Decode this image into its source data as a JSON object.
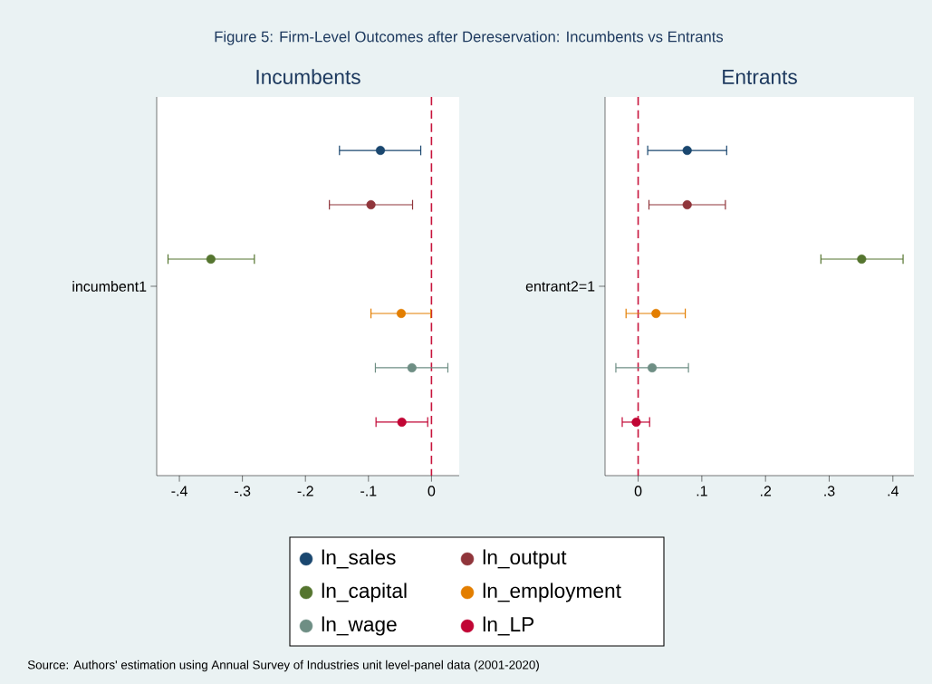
{
  "chart_data": [
    {
      "type": "scatter",
      "orientation": "horizontal",
      "title": "Incumbents",
      "ylabel": "incumbent1",
      "categories": [
        null,
        null,
        null,
        null,
        null,
        null
      ],
      "series": [
        {
          "name": "ln_sales",
          "color": "#1a476f",
          "values": [
            -0.081,
            null,
            null,
            null,
            null,
            null
          ],
          "errors": [
            [
              -0.146,
              -0.017
            ],
            null,
            null,
            null,
            null,
            null
          ]
        },
        {
          "name": "ln_output",
          "color": "#90353b",
          "values": [
            null,
            -0.096,
            null,
            null,
            null,
            null
          ],
          "errors": [
            null,
            [
              -0.162,
              -0.03
            ],
            null,
            null,
            null,
            null
          ]
        },
        {
          "name": "ln_capital",
          "color": "#55752f",
          "values": [
            null,
            null,
            -0.35,
            null,
            null,
            null
          ],
          "errors": [
            null,
            null,
            [
              -0.418,
              -0.281
            ],
            null,
            null,
            null
          ]
        },
        {
          "name": "ln_employment",
          "color": "#e37e00",
          "values": [
            null,
            null,
            null,
            -0.048,
            null,
            null
          ],
          "errors": [
            null,
            null,
            null,
            [
              -0.096,
              -0.001
            ],
            null,
            null
          ]
        },
        {
          "name": "ln_wage",
          "color": "#6e8e84",
          "values": [
            null,
            null,
            null,
            null,
            -0.031,
            null
          ],
          "errors": [
            null,
            null,
            null,
            null,
            [
              -0.089,
              0.026
            ],
            null
          ]
        },
        {
          "name": "ln_LP",
          "color": "#c10534",
          "values": [
            null,
            null,
            null,
            null,
            null,
            -0.047
          ],
          "errors": [
            null,
            null,
            null,
            null,
            null,
            [
              -0.088,
              -0.006
            ]
          ]
        }
      ],
      "xlim": [
        -0.436,
        0.044
      ],
      "xticks": [
        {
          "value": -0.4,
          "label": "-.4"
        },
        {
          "value": -0.3,
          "label": "-.3"
        },
        {
          "value": -0.2,
          "label": "-.2"
        },
        {
          "value": -0.1,
          "label": "-.1"
        },
        0
      ],
      "ref_lines": [
        {
          "axis": "x",
          "value": 0,
          "color": "#c8143c",
          "line_style": "dashed"
        }
      ],
      "marker": "circle",
      "legend": "bottom",
      "annotations": [
        "Figure 5: Firm-Level Outcomes after Dereservation: Incumbents vs Entrants",
        "Source: Authors' estimation using Annual Survey of Industries unit level-panel data (2001-2020)"
      ]
    },
    {
      "type": "scatter",
      "orientation": "horizontal",
      "title": "Entrants",
      "ylabel": "entrant2=1",
      "categories": [
        null,
        null,
        null,
        null,
        null,
        null
      ],
      "series": [
        {
          "color": "#1a476f",
          "values": [
            0.077,
            null,
            null,
            null,
            null,
            null
          ],
          "errors": [
            [
              0.015,
              0.139
            ],
            null,
            null,
            null,
            null,
            null
          ]
        },
        {
          "color": "#90353b",
          "values": [
            null,
            0.077,
            null,
            null,
            null,
            null
          ],
          "errors": [
            null,
            [
              0.017,
              0.137
            ],
            null,
            null,
            null,
            null
          ]
        },
        {
          "color": "#55752f",
          "values": [
            null,
            null,
            0.351,
            null,
            null,
            null
          ],
          "errors": [
            null,
            null,
            [
              0.287,
              0.416
            ],
            null,
            null,
            null
          ]
        },
        {
          "color": "#e37e00",
          "values": [
            null,
            null,
            null,
            0.028,
            null,
            null
          ],
          "errors": [
            null,
            null,
            null,
            [
              -0.019,
              0.074
            ],
            null,
            null
          ]
        },
        {
          "color": "#6e8e84",
          "values": [
            null,
            null,
            null,
            null,
            0.022,
            null
          ],
          "errors": [
            null,
            null,
            null,
            null,
            [
              -0.035,
              0.079
            ],
            null
          ]
        },
        {
          "color": "#c10534",
          "values": [
            null,
            null,
            null,
            null,
            null,
            -0.003
          ],
          "errors": [
            null,
            null,
            null,
            null,
            null,
            [
              -0.025,
              0.018
            ]
          ]
        }
      ],
      "xlim": [
        -0.052,
        0.433
      ],
      "xticks": [
        0,
        {
          "value": 0.1,
          "label": ".1"
        },
        {
          "value": 0.2,
          "label": ".2"
        },
        {
          "value": 0.3,
          "label": ".3"
        },
        {
          "value": 0.4,
          "label": ".4"
        }
      ],
      "ref_lines": [
        {
          "axis": "x",
          "value": 0,
          "color": "#c8143c",
          "line_style": "dashed"
        }
      ],
      "marker": "circle"
    }
  ]
}
